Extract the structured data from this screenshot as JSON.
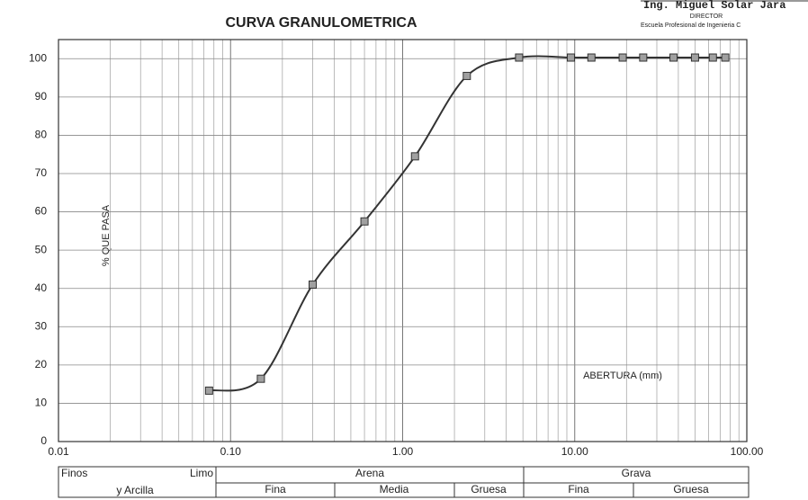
{
  "chart_data": {
    "type": "line",
    "title": "CURVA GRANULOMETRICA",
    "ylabel": "% QUE PASA",
    "annotation": "ABERTURA (mm)",
    "xscale": "log",
    "xlim": [
      0.01,
      100
    ],
    "xticks": [
      0.01,
      {
        "value": 0.1,
        "label": "0.10"
      },
      {
        "value": 1,
        "label": "1.00"
      },
      {
        "value": 10,
        "label": "10.00"
      },
      {
        "value": 100,
        "label": "100.00"
      }
    ],
    "xminorticks": [
      0.02,
      0.03,
      0.04,
      0.05,
      0.06,
      0.07,
      0.08,
      0.09,
      0.2,
      0.3,
      0.4,
      0.5,
      0.6,
      0.7,
      0.8,
      0.9,
      2,
      3,
      4,
      5,
      6,
      7,
      8,
      9,
      20,
      30,
      40,
      50,
      60,
      70,
      80,
      90
    ],
    "ylim": [
      0,
      105
    ],
    "yticks": [
      0,
      10,
      20,
      30,
      40,
      50,
      60,
      70,
      80,
      90,
      100
    ],
    "grid": true,
    "series": [
      {
        "color": "#333333",
        "marker_color": "#a0a0a0",
        "x": [
          0.075,
          0.15,
          0.3,
          0.6,
          1.18,
          2.36,
          4.75,
          9.5,
          12.5,
          19,
          25,
          37.5,
          50,
          63.5,
          75
        ],
        "values": [
          13.3,
          16.4,
          41,
          57.5,
          74.5,
          95.5,
          100.3,
          100.3,
          100.3,
          100.3,
          100.3,
          100.3,
          100.3,
          100.3,
          100.3
        ]
      }
    ]
  },
  "stamp": {
    "name": "Ing. Miguel Solar Jara",
    "role": "DIRECTOR",
    "school": "Escuela Profesional de Ingenieria C"
  },
  "soil_table": {
    "finos": "Finos",
    "limo": "Limo",
    "arcilla": "y Arcilla",
    "groups": [
      {
        "name": "Arena",
        "subs": [
          "Fina",
          "Media",
          "Gruesa"
        ]
      },
      {
        "name": "Grava",
        "subs": [
          "Fina",
          "Gruesa"
        ]
      }
    ]
  }
}
